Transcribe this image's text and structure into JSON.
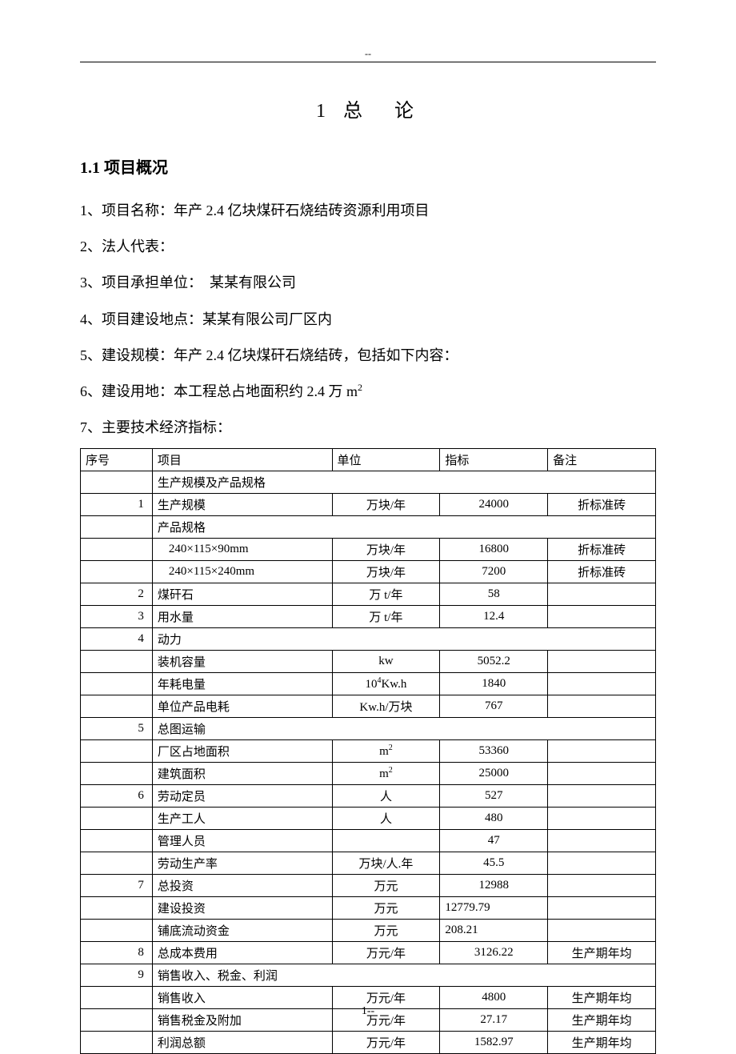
{
  "header_marker": "--",
  "title": "1 总　论",
  "section_heading": "1.1 项目概况",
  "paragraphs": {
    "p1": "1、项目名称：年产 2.4 亿块煤矸石烧结砖资源利用项目",
    "p2": "2、法人代表：",
    "p3": "3、项目承担单位：　某某有限公司",
    "p4": "4、项目建设地点：某某有限公司厂区内",
    "p5": "5、建设规模：年产 2.4 亿块煤矸石烧结砖，包括如下内容：",
    "p6_pre": "6、建设用地：本工程总占地面积约 2.4 万 m",
    "p6_sup": "2",
    "p7": "7、主要技术经济指标："
  },
  "table": {
    "headers": {
      "seq": "序号",
      "item": "项目",
      "unit": "单位",
      "val": "指标",
      "note": "备注"
    },
    "rows": [
      {
        "type": "span",
        "seq": "",
        "item": "生产规模及产品规格"
      },
      {
        "type": "data",
        "seq": "1",
        "item": "生产规模",
        "unit": "万块/年",
        "val": "24000",
        "note": "折标准砖",
        "unit_align": "center",
        "val_align": "center"
      },
      {
        "type": "span",
        "seq": "",
        "item": "产品规格"
      },
      {
        "type": "data",
        "seq": "",
        "item": "240×115×90mm",
        "unit": "万块/年",
        "val": "16800",
        "note": "折标准砖",
        "item_indent": true,
        "unit_align": "center",
        "val_align": "center"
      },
      {
        "type": "data",
        "seq": "",
        "item": "240×115×240mm",
        "unit": "万块/年",
        "val": "7200",
        "note": "折标准砖",
        "item_indent": true,
        "unit_align": "center",
        "val_align": "center"
      },
      {
        "type": "data",
        "seq": "2",
        "item": "煤矸石",
        "unit": "万 t/年",
        "val": "58",
        "note": "",
        "unit_align": "center",
        "val_align": "center"
      },
      {
        "type": "data",
        "seq": "3",
        "item": "用水量",
        "unit": "万 t/年",
        "val": "12.4",
        "note": "",
        "unit_align": "center",
        "val_align": "center"
      },
      {
        "type": "span",
        "seq": "4",
        "item": "动力"
      },
      {
        "type": "data",
        "seq": "",
        "item": "装机容量",
        "unit": "kw",
        "val": "5052.2",
        "note": "",
        "unit_align": "center",
        "val_align": "center"
      },
      {
        "type": "data",
        "seq": "",
        "item": "年耗电量",
        "unit_html": "10<sup>4</sup>Kw.h",
        "val": "1840",
        "note": "",
        "unit_align": "center",
        "val_align": "center"
      },
      {
        "type": "data",
        "seq": "",
        "item": "单位产品电耗",
        "unit": "Kw.h/万块",
        "val": "767",
        "note": "",
        "unit_align": "center",
        "val_align": "center"
      },
      {
        "type": "span",
        "seq": "5",
        "item": "总图运输"
      },
      {
        "type": "data",
        "seq": "",
        "item": "厂区占地面积",
        "unit_html": "m<sup>2</sup>",
        "val": "53360",
        "note": "",
        "unit_align": "center",
        "val_align": "center"
      },
      {
        "type": "data",
        "seq": "",
        "item": "建筑面积",
        "unit_html": "m<sup>2</sup>",
        "val": "25000",
        "note": "",
        "unit_align": "center",
        "val_align": "center"
      },
      {
        "type": "data",
        "seq": "6",
        "item": "劳动定员",
        "unit": "人",
        "val": "527",
        "note": "",
        "unit_align": "center",
        "val_align": "center"
      },
      {
        "type": "data",
        "seq": "",
        "item": "生产工人",
        "unit": "人",
        "val": "480",
        "note": "",
        "unit_align": "center",
        "val_align": "center"
      },
      {
        "type": "data",
        "seq": "",
        "item": "管理人员",
        "unit": "",
        "val": "47",
        "note": "",
        "unit_align": "center",
        "val_align": "center"
      },
      {
        "type": "data",
        "seq": "",
        "item": "劳动生产率",
        "unit": "万块/人.年",
        "val": "45.5",
        "note": "",
        "unit_align": "center",
        "val_align": "center"
      },
      {
        "type": "data",
        "seq": "7",
        "item": "总投资",
        "unit": "万元",
        "val": "12988",
        "note": "",
        "unit_align": "center",
        "val_align": "center"
      },
      {
        "type": "data",
        "seq": "",
        "item": "建设投资",
        "unit": "万元",
        "val": "12779.79",
        "note": "",
        "unit_align": "center",
        "val_align": "left"
      },
      {
        "type": "data",
        "seq": "",
        "item": "铺底流动资金",
        "unit": "万元",
        "val": "208.21",
        "note": "",
        "unit_align": "center",
        "val_align": "left"
      },
      {
        "type": "data",
        "seq": "8",
        "item": "总成本费用",
        "unit": "万元/年",
        "val": "3126.22",
        "note": "生产期年均",
        "unit_align": "center",
        "val_align": "center"
      },
      {
        "type": "span",
        "seq": "9",
        "item": "销售收入、税金、利润"
      },
      {
        "type": "data",
        "seq": "",
        "item": "销售收入",
        "unit": "万元/年",
        "val": "4800",
        "note": "生产期年均",
        "unit_align": "center",
        "val_align": "center"
      },
      {
        "type": "data",
        "seq": "",
        "item": "销售税金及附加",
        "unit": "万元/年",
        "val": "27.17",
        "note": "生产期年均",
        "unit_align": "center",
        "val_align": "center"
      },
      {
        "type": "data",
        "seq": "",
        "item": "利润总额",
        "unit": "万元/年",
        "val": "1582.97",
        "note": "生产期年均",
        "unit_align": "center",
        "val_align": "center"
      }
    ]
  },
  "page_number": "1--"
}
